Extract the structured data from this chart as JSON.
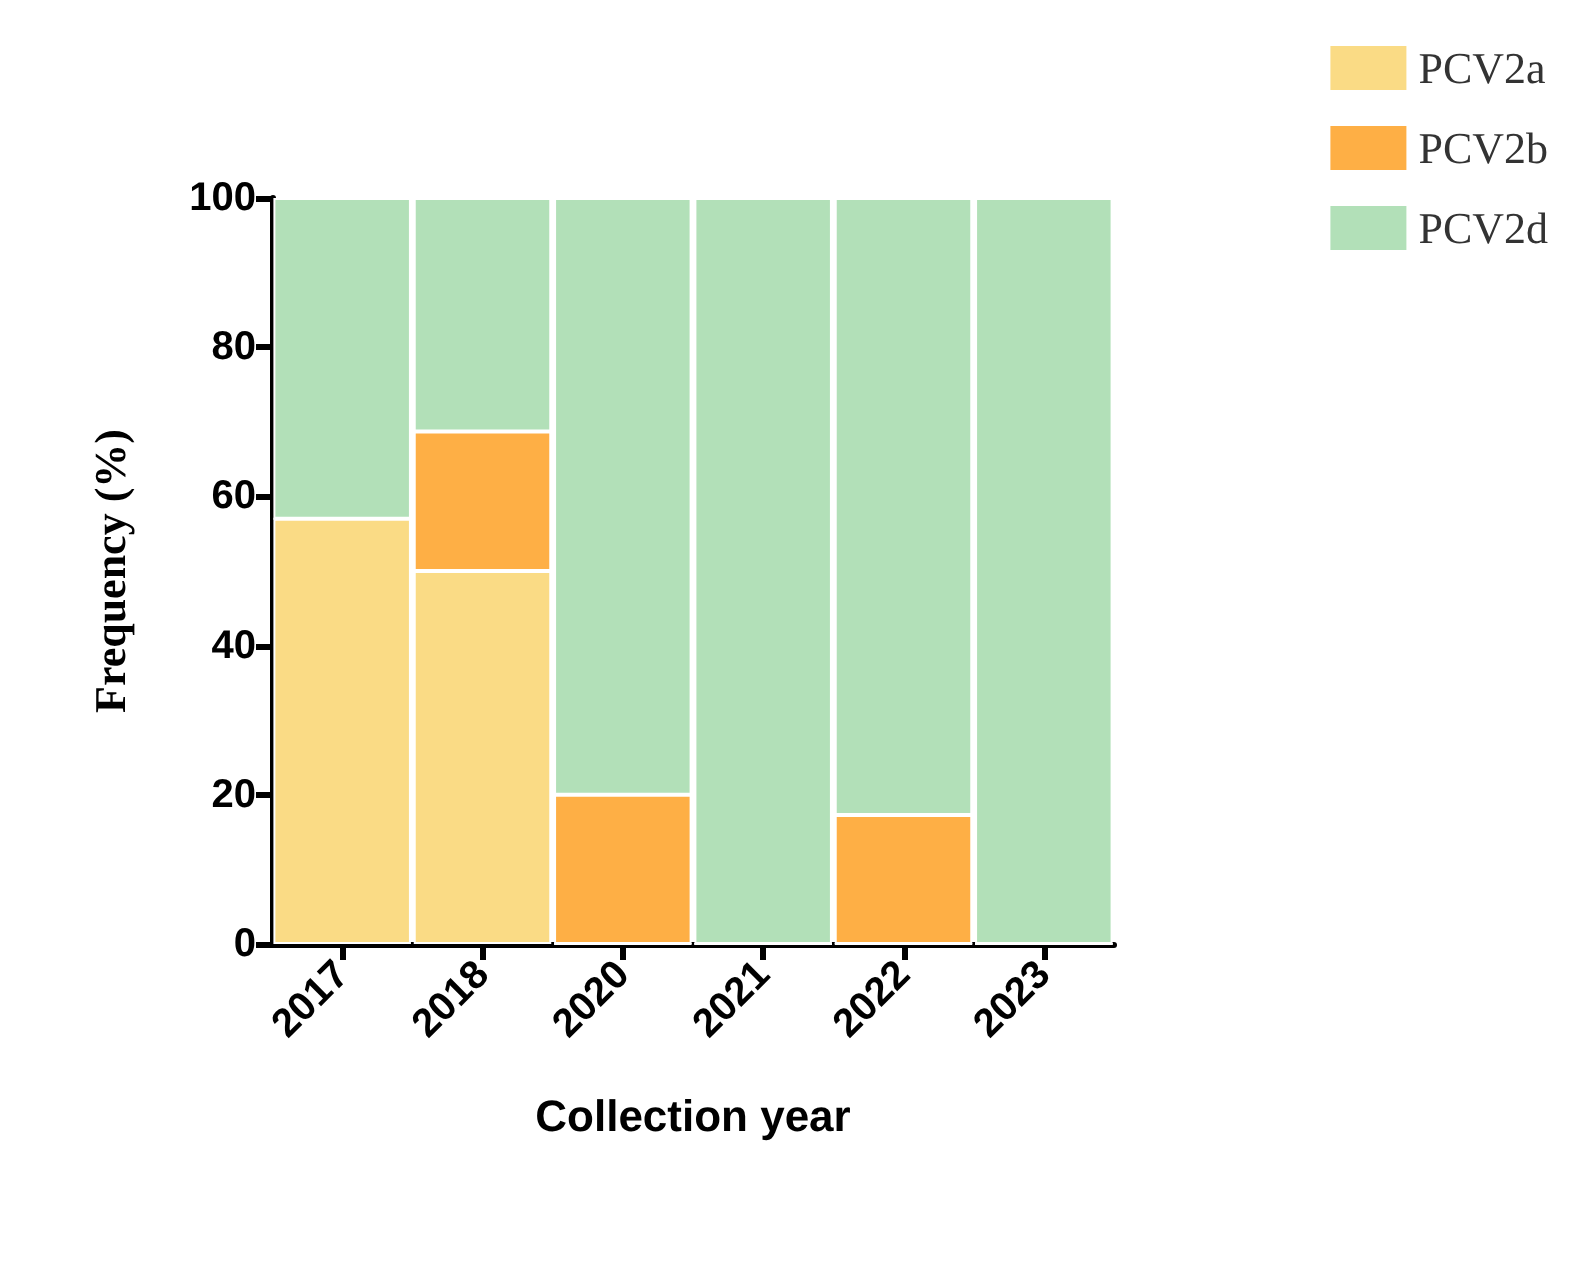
{
  "chart_data": {
    "type": "bar",
    "stacked": true,
    "xlabel": "Collection year",
    "ylabel": "Frequency (%)",
    "categories": [
      "2017",
      "2018",
      "2020",
      "2021",
      "2022",
      "2023"
    ],
    "series": [
      {
        "name": "PCV2a",
        "color": "#fadb85",
        "values": [
          57,
          50,
          0,
          0,
          0,
          0
        ]
      },
      {
        "name": "PCV2b",
        "color": "#feaf45",
        "values": [
          0,
          18.7,
          20,
          0,
          17.3,
          0
        ]
      },
      {
        "name": "PCV2d",
        "color": "#b2e0b8",
        "values": [
          43,
          31.3,
          80,
          100,
          82.7,
          100
        ]
      }
    ],
    "ylim": [
      0,
      100
    ],
    "yticks": [
      0,
      20,
      40,
      60,
      80,
      100
    ],
    "grid": false,
    "legend": "top right"
  }
}
